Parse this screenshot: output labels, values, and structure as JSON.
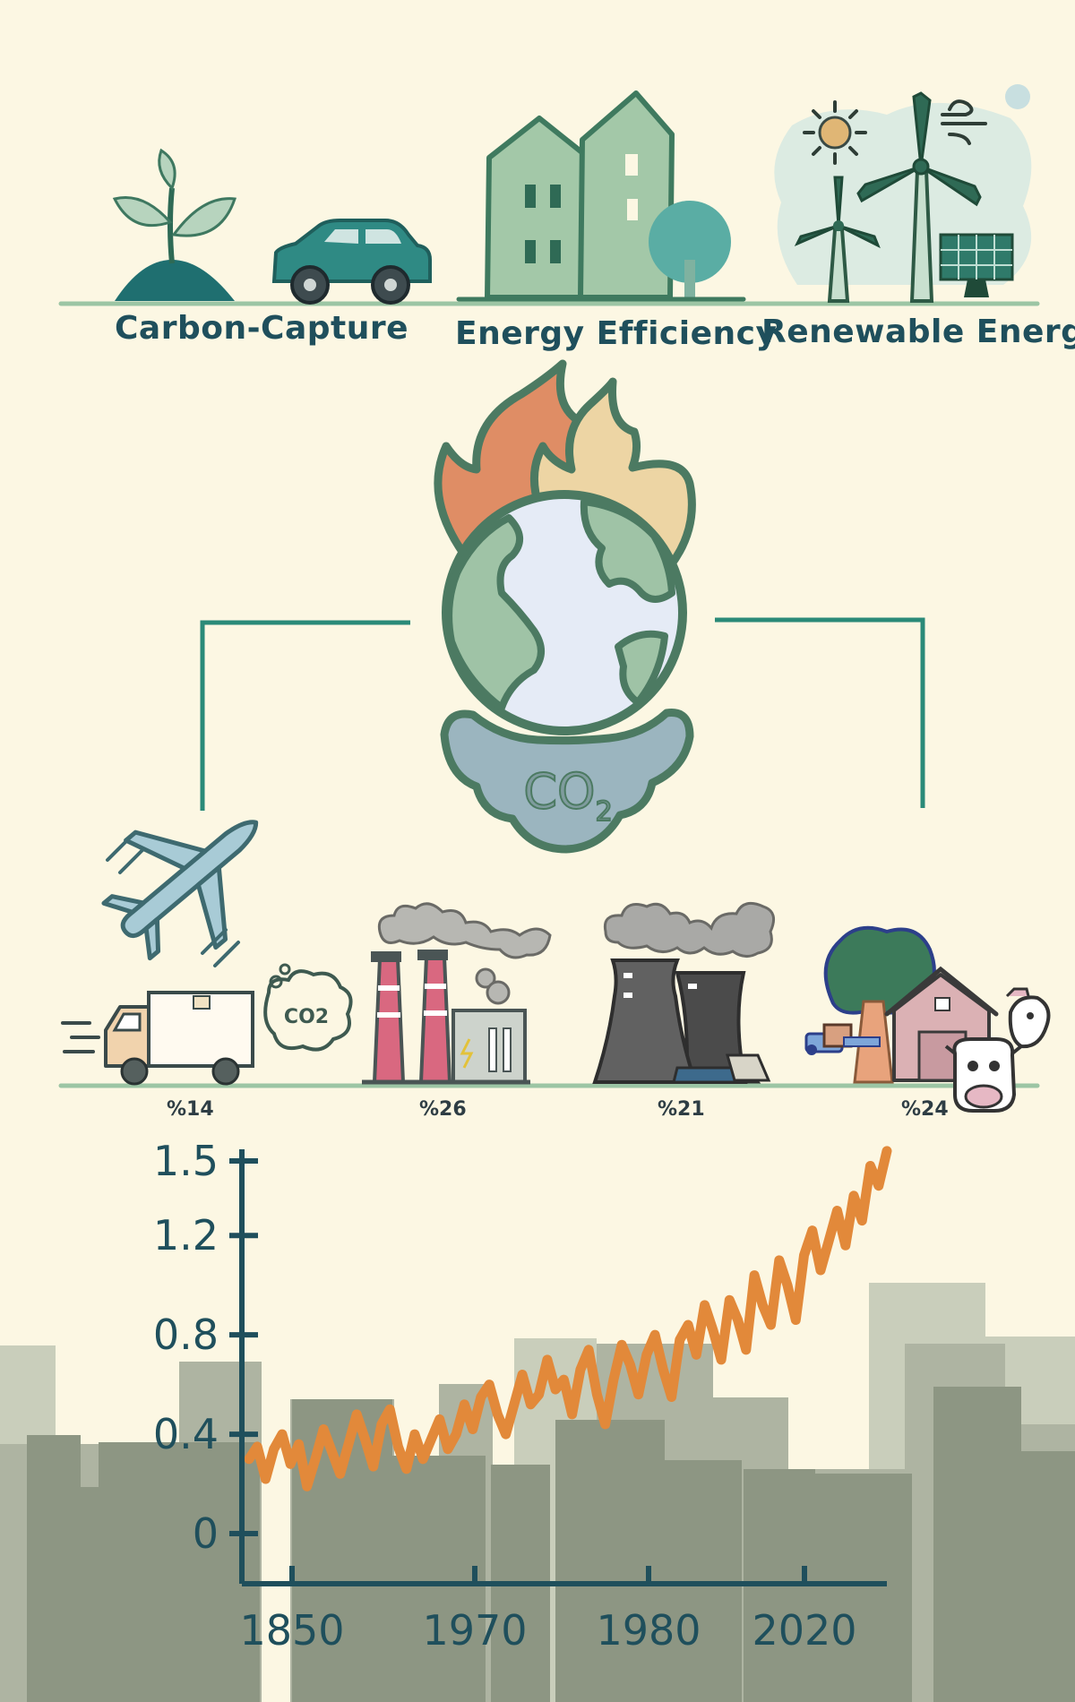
{
  "solutions": {
    "carbon_capture": "Carbon-Capture",
    "energy_efficiency": "Energy Efficiency",
    "renewable_energy": "Renewable Energy"
  },
  "center": {
    "co2_text": "CO",
    "co2_sub": "2"
  },
  "sources": {
    "transport_pct": "%14",
    "industry_pct": "%26",
    "power_pct": "%21",
    "agriculture_pct": "%24",
    "truck_badge": "CO2"
  },
  "colors": {
    "background": "#fcf7e3",
    "teal": "#2a8a78",
    "dark_navy": "#1f4f5c",
    "line_orange": "#e2893a",
    "city_gray": "#8d9683"
  },
  "chart_data": {
    "type": "line",
    "title": "",
    "xlabel": "",
    "ylabel": "",
    "x_ticks": [
      "1850",
      "1970",
      "1980",
      "2020"
    ],
    "y_ticks": [
      "0",
      "0.4",
      "0.8",
      "1.2",
      "1.5"
    ],
    "ylim": [
      0,
      1.5
    ],
    "grid": false,
    "series": [
      {
        "color": "#e2893a",
        "values": [
          0.3,
          0.35,
          0.22,
          0.34,
          0.4,
          0.28,
          0.36,
          0.19,
          0.3,
          0.42,
          0.33,
          0.24,
          0.36,
          0.48,
          0.38,
          0.27,
          0.44,
          0.5,
          0.35,
          0.26,
          0.4,
          0.3,
          0.38,
          0.46,
          0.34,
          0.4,
          0.52,
          0.42,
          0.55,
          0.6,
          0.48,
          0.4,
          0.52,
          0.64,
          0.52,
          0.56,
          0.7,
          0.58,
          0.62,
          0.48,
          0.66,
          0.74,
          0.56,
          0.44,
          0.62,
          0.76,
          0.68,
          0.56,
          0.72,
          0.8,
          0.66,
          0.55,
          0.78,
          0.84,
          0.72,
          0.92,
          0.82,
          0.7,
          0.94,
          0.86,
          0.74,
          1.04,
          0.92,
          0.84,
          1.1,
          1.0,
          0.86,
          1.12,
          1.22,
          1.06,
          1.18,
          1.3,
          1.16,
          1.36,
          1.26,
          1.48,
          1.4,
          1.54
        ]
      }
    ]
  }
}
